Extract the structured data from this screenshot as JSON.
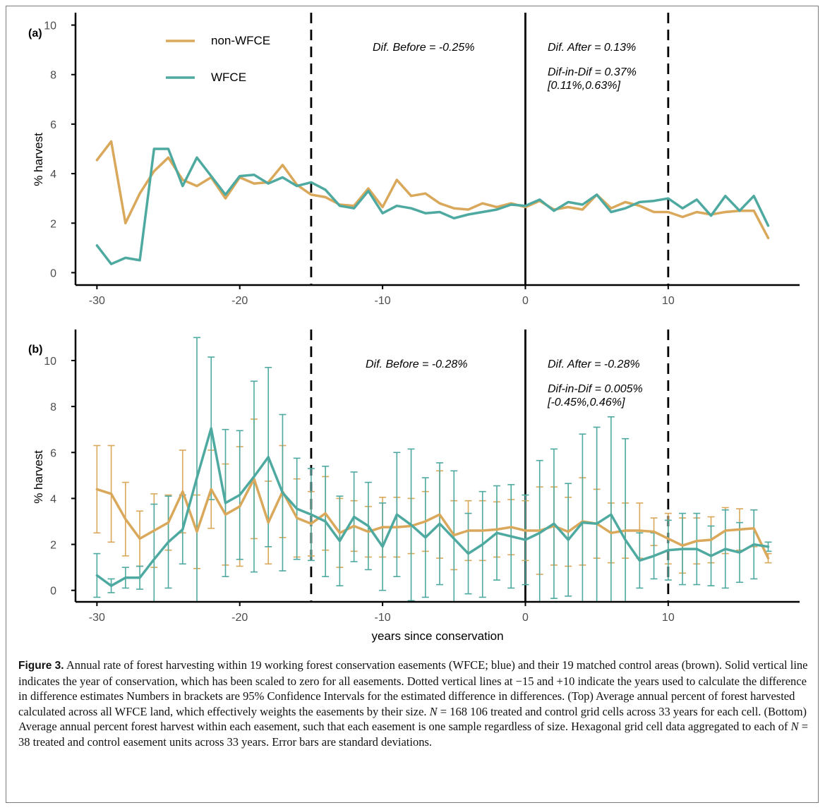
{
  "colors": {
    "non_wfce": "#d9a85a",
    "wfce": "#4eaaa0",
    "axis": "#000000",
    "tick_text": "#4d4d4d"
  },
  "chart_data": [
    {
      "panel": "(a)",
      "type": "line",
      "ylabel": "% harvest",
      "xlabel": "",
      "xlim": [
        -31.5,
        19.2
      ],
      "ylim": [
        -0.5,
        10.5
      ],
      "x_ticks": [
        -30,
        -20,
        -10,
        0,
        10
      ],
      "y_ticks": [
        0,
        2,
        4,
        6,
        8,
        10
      ],
      "grid": false,
      "legend_position": "top-left",
      "vlines": [
        {
          "x": -15,
          "style": "dashed"
        },
        {
          "x": 0,
          "style": "solid"
        },
        {
          "x": 10,
          "style": "dashed"
        }
      ],
      "annotations": {
        "dif_before": "Dif. Before = -0.25%",
        "dif_after": "Dif. After = 0.13%",
        "dif_in_dif": "Dif-in-Dif = 0.37%",
        "ci": "[0.11%,0.63%]"
      },
      "x": [
        -30,
        -29,
        -28,
        -27,
        -26,
        -25,
        -24,
        -23,
        -22,
        -21,
        -20,
        -19,
        -18,
        -17,
        -16,
        -15,
        -14,
        -13,
        -12,
        -11,
        -10,
        -9,
        -8,
        -7,
        -6,
        -5,
        -4,
        -3,
        -2,
        -1,
        0,
        1,
        2,
        3,
        4,
        5,
        6,
        7,
        8,
        9,
        10,
        11,
        12,
        13,
        14,
        15,
        16,
        17
      ],
      "series": [
        {
          "name": "non-WFCE",
          "values": [
            4.55,
            5.3,
            2.0,
            3.2,
            4.1,
            4.65,
            3.75,
            3.5,
            3.85,
            3.0,
            3.85,
            3.6,
            3.65,
            4.35,
            3.55,
            3.15,
            3.05,
            2.75,
            2.7,
            3.4,
            2.65,
            3.75,
            3.1,
            3.2,
            2.8,
            2.6,
            2.55,
            2.8,
            2.65,
            2.8,
            2.65,
            2.9,
            2.55,
            2.65,
            2.55,
            3.15,
            2.6,
            2.85,
            2.7,
            2.45,
            2.45,
            2.25,
            2.45,
            2.35,
            2.45,
            2.5,
            2.5,
            1.4
          ]
        },
        {
          "name": "WFCE",
          "values": [
            1.1,
            0.35,
            0.6,
            0.5,
            5.0,
            5.0,
            3.5,
            4.65,
            3.9,
            3.15,
            3.9,
            3.95,
            3.6,
            3.85,
            3.5,
            3.65,
            3.35,
            2.7,
            2.6,
            3.3,
            2.4,
            2.7,
            2.6,
            2.4,
            2.45,
            2.2,
            2.35,
            2.45,
            2.55,
            2.75,
            2.7,
            2.95,
            2.5,
            2.85,
            2.75,
            3.15,
            2.45,
            2.6,
            2.85,
            2.9,
            3.0,
            2.6,
            2.95,
            2.3,
            3.1,
            2.5,
            3.1,
            1.9
          ]
        }
      ]
    },
    {
      "panel": "(b)",
      "type": "line",
      "ylabel": "% harvest",
      "xlabel": "years since conservation",
      "xlim": [
        -31.5,
        19.2
      ],
      "ylim": [
        -0.5,
        11.35
      ],
      "x_ticks": [
        -30,
        -20,
        -10,
        0,
        10
      ],
      "y_ticks": [
        0,
        2,
        4,
        6,
        8,
        10
      ],
      "grid": false,
      "vlines": [
        {
          "x": -15,
          "style": "dashed"
        },
        {
          "x": 0,
          "style": "solid"
        },
        {
          "x": 10,
          "style": "dashed"
        }
      ],
      "annotations": {
        "dif_before": "Dif. Before = -0.28%",
        "dif_after": "Dif. After = -0.28%",
        "dif_in_dif": "Dif-in-Dif = 0.005%",
        "ci": "[-0.45%,0.46%]"
      },
      "x": [
        -30,
        -29,
        -28,
        -27,
        -26,
        -25,
        -24,
        -23,
        -22,
        -21,
        -20,
        -19,
        -18,
        -17,
        -16,
        -15,
        -14,
        -13,
        -12,
        -11,
        -10,
        -9,
        -8,
        -7,
        -6,
        -5,
        -4,
        -3,
        -2,
        -1,
        0,
        1,
        2,
        3,
        4,
        5,
        6,
        7,
        8,
        9,
        10,
        11,
        12,
        13,
        14,
        15,
        16,
        17
      ],
      "series": [
        {
          "name": "non-WFCE",
          "values": [
            4.4,
            4.2,
            3.1,
            2.25,
            2.6,
            2.95,
            4.3,
            2.55,
            4.4,
            3.3,
            3.65,
            4.85,
            2.95,
            4.3,
            3.15,
            2.9,
            3.35,
            2.5,
            2.8,
            2.55,
            2.75,
            2.75,
            2.8,
            3.0,
            3.3,
            2.4,
            2.6,
            2.6,
            2.65,
            2.75,
            2.6,
            2.6,
            2.8,
            2.55,
            3.0,
            2.9,
            2.5,
            2.6,
            2.6,
            2.55,
            2.25,
            1.95,
            2.15,
            2.2,
            2.6,
            2.65,
            2.7,
            1.4
          ],
          "error": [
            1.9,
            2.1,
            1.6,
            1.2,
            1.6,
            1.2,
            1.8,
            1.6,
            1.7,
            2.2,
            2.6,
            2.6,
            1.8,
            2.0,
            1.7,
            1.4,
            1.6,
            1.5,
            1.1,
            1.1,
            1.3,
            1.3,
            1.2,
            1.3,
            1.9,
            1.5,
            1.3,
            1.3,
            1.2,
            1.2,
            1.3,
            1.9,
            1.7,
            1.5,
            1.9,
            1.5,
            1.3,
            1.2,
            1.2,
            0.6,
            1.1,
            1.2,
            1.0,
            1.0,
            1.0,
            0.9,
            0.8,
            0.2
          ]
        },
        {
          "name": "WFCE",
          "values": [
            0.65,
            0.2,
            0.55,
            0.55,
            1.35,
            2.1,
            2.65,
            4.9,
            7.05,
            3.8,
            4.15,
            4.95,
            5.8,
            4.25,
            3.55,
            3.3,
            3.0,
            2.15,
            3.2,
            2.8,
            1.9,
            3.3,
            2.85,
            2.3,
            2.9,
            2.25,
            1.6,
            2.0,
            2.5,
            2.35,
            2.2,
            2.5,
            2.9,
            2.2,
            2.95,
            2.9,
            3.3,
            2.2,
            1.3,
            1.5,
            1.75,
            1.8,
            1.8,
            1.5,
            1.8,
            1.65,
            2.0,
            1.9
          ],
          "error": [
            0.95,
            0.3,
            0.45,
            0.5,
            2.4,
            2.0,
            1.5,
            6.1,
            3.1,
            3.2,
            2.8,
            4.15,
            3.9,
            3.4,
            2.2,
            2.0,
            2.4,
            1.95,
            1.95,
            1.9,
            1.9,
            2.7,
            3.3,
            2.6,
            2.65,
            2.95,
            1.75,
            2.3,
            2.05,
            2.25,
            1.95,
            3.15,
            3.25,
            2.45,
            3.85,
            4.2,
            4.25,
            4.4,
            1.2,
            1.0,
            1.3,
            1.55,
            1.55,
            1.3,
            1.7,
            1.3,
            1.5,
            0.2
          ]
        }
      ]
    }
  ],
  "caption": {
    "label": "Figure 3.",
    "text_1": " Annual rate of forest harvesting within 19 working forest conservation easements (WFCE; blue) and their 19 matched control areas (brown). Solid vertical line indicates the year of conservation, which has been scaled to zero for all easements. Dotted vertical lines at −15 and +10 indicate the years used to calculate the difference in difference estimates Numbers in brackets are 95% Confidence Intervals for the estimated difference in differences. (Top) Average annual percent of forest harvested calculated across all WFCE land, which effectively weights the easements by their size. ",
    "n1_symbol": "N",
    "text_2": " = 168 106 treated and control grid cells across 33 years for each cell. (Bottom) Average annual percent forest harvest within each easement, such that each easement is one sample regardless of size. Hexagonal grid cell data aggregated to each of ",
    "n2_symbol": "N",
    "text_3": " = 38 treated and control easement units across 33 years. Error bars are standard deviations."
  }
}
